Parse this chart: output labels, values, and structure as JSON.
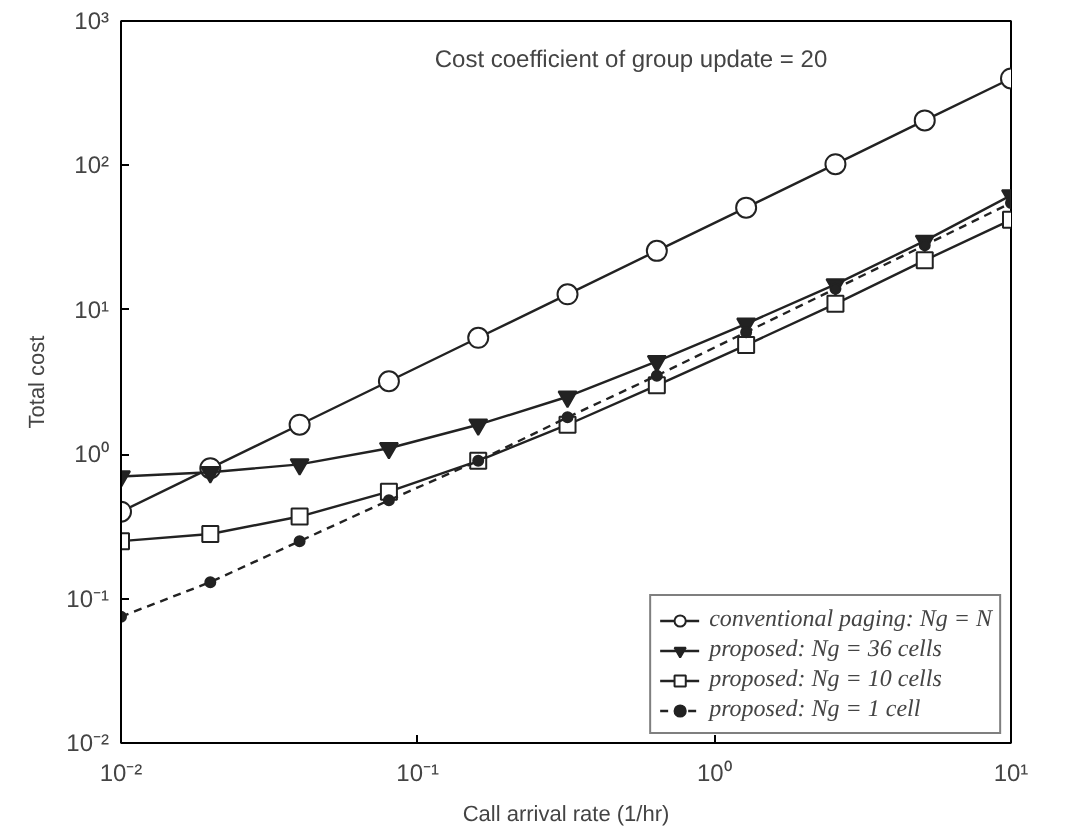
{
  "chart_data": {
    "type": "line",
    "xlabel": "Call arrival rate (1/hr)",
    "ylabel": "Total cost",
    "annotations": [
      "Cost coefficient of group update = 20"
    ],
    "log": "xy",
    "grid": false,
    "legend": "bottom right",
    "xlim": [
      0.01,
      10
    ],
    "ylim": [
      0.01,
      1000
    ],
    "xticks": [
      {
        "value": 0.01,
        "label": "10⁻²"
      },
      {
        "value": 0.1,
        "label": "10⁻¹"
      },
      {
        "value": 1,
        "label": "10⁰"
      },
      {
        "value": 10,
        "label": "10¹"
      }
    ],
    "yticks": [
      {
        "value": 0.01,
        "label": "10⁻²"
      },
      {
        "value": 0.1,
        "label": "10⁻¹"
      },
      {
        "value": 1,
        "label": "10⁰"
      },
      {
        "value": 10,
        "label": "10¹"
      },
      {
        "value": 100,
        "label": "10²"
      },
      {
        "value": 1000,
        "label": "10³"
      }
    ],
    "x": [
      0.01,
      0.02,
      0.04,
      0.08,
      0.16,
      0.32,
      0.64,
      1.28,
      2.56,
      5.12,
      10
    ],
    "series": [
      {
        "name": "conventional paging: Ng = N",
        "color": "#222222",
        "marker": "circle",
        "line_style": "solid",
        "values": [
          0.4,
          0.8,
          1.6,
          3.2,
          6.4,
          12.8,
          25.6,
          51,
          102,
          205,
          400
        ]
      },
      {
        "name": "proposed: Ng = 36 cells",
        "color": "#222222",
        "marker": "triangle",
        "line_style": "solid",
        "values": [
          0.7,
          0.75,
          0.85,
          1.1,
          1.6,
          2.5,
          4.4,
          8,
          15,
          30,
          62
        ]
      },
      {
        "name": "proposed: Ng = 10 cells",
        "color": "#222222",
        "marker": "square",
        "line_style": "solid",
        "values": [
          0.25,
          0.28,
          0.37,
          0.55,
          0.9,
          1.6,
          3,
          5.7,
          11,
          22,
          42
        ]
      },
      {
        "name": "proposed: Ng = 1 cell",
        "color": "#222222",
        "marker": "dot",
        "line_style": "dotted",
        "values": [
          0.075,
          0.13,
          0.25,
          0.48,
          0.9,
          1.8,
          3.5,
          7,
          14,
          28,
          55
        ]
      }
    ]
  }
}
